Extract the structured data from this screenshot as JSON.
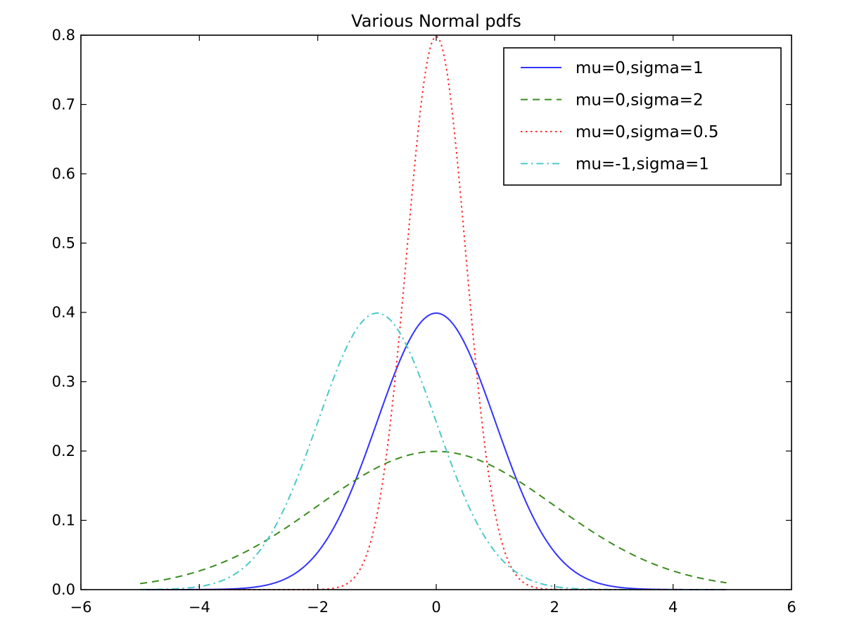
{
  "chart_data": {
    "type": "line",
    "title": "Various Normal pdfs",
    "xlabel": "",
    "ylabel": "",
    "xlim": [
      -6,
      6
    ],
    "ylim": [
      0.0,
      0.8
    ],
    "xticks": [
      -6,
      -4,
      -2,
      0,
      2,
      4,
      6
    ],
    "xtick_labels": [
      "−6",
      "−4",
      "−2",
      "0",
      "2",
      "4",
      "6"
    ],
    "yticks": [
      0.0,
      0.1,
      0.2,
      0.3,
      0.4,
      0.5,
      0.6,
      0.7,
      0.8
    ],
    "ytick_labels": [
      "0.0",
      "0.1",
      "0.2",
      "0.3",
      "0.4",
      "0.5",
      "0.6",
      "0.7",
      "0.8"
    ],
    "grid": false,
    "legend_position": "top-right",
    "x_range_plotted": [
      -5,
      4.9
    ],
    "series": [
      {
        "name": "mu=0,sigma=1",
        "mu": 0,
        "sigma": 1,
        "color": "#3333ff",
        "style": "solid"
      },
      {
        "name": "mu=0,sigma=2",
        "mu": 0,
        "sigma": 2,
        "color": "#3a8c1f",
        "style": "dashed"
      },
      {
        "name": "mu=0,sigma=0.5",
        "mu": 0,
        "sigma": 0.5,
        "color": "#ff2a2a",
        "style": "dotted"
      },
      {
        "name": "mu=-1,sigma=1",
        "mu": -1,
        "sigma": 1,
        "color": "#4cc9c9",
        "style": "dashdot"
      }
    ]
  }
}
